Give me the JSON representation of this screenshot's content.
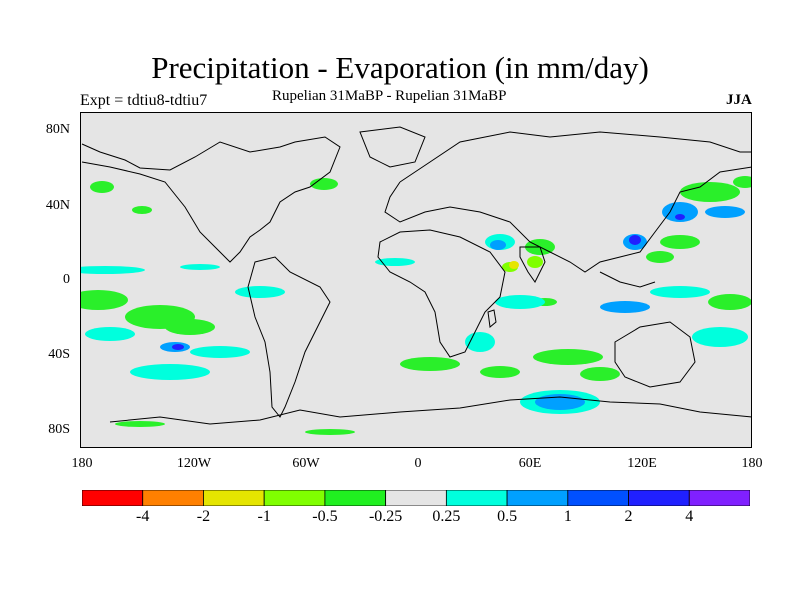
{
  "title": "Precipitation - Evaporation (in mm/day)",
  "subtitle_left": "Expt = tdtiu8-tdtiu7",
  "subtitle_center": "Rupelian  31MaBP - Rupelian  31MaBP",
  "subtitle_right": "JJA",
  "lat_labels": [
    "80N",
    "40N",
    "0",
    "40S",
    "80S"
  ],
  "lon_labels": [
    "180",
    "120W",
    "60W",
    "0",
    "60E",
    "120E",
    "180"
  ],
  "colorbar": {
    "colors": [
      "#ff0000",
      "#ff8000",
      "#e5e500",
      "#80ff00",
      "#20f020",
      "#e5e5e5",
      "#00ffdd",
      "#00a0ff",
      "#0050ff",
      "#2020ff",
      "#8020ff"
    ],
    "labels": [
      "-4",
      "-2",
      "-1",
      "-0.5",
      "-0.25",
      "0.25",
      "0.5",
      "1",
      "2",
      "4"
    ]
  },
  "colors": {
    "background_field": "#e5e5e5",
    "coastline": "#000000"
  }
}
